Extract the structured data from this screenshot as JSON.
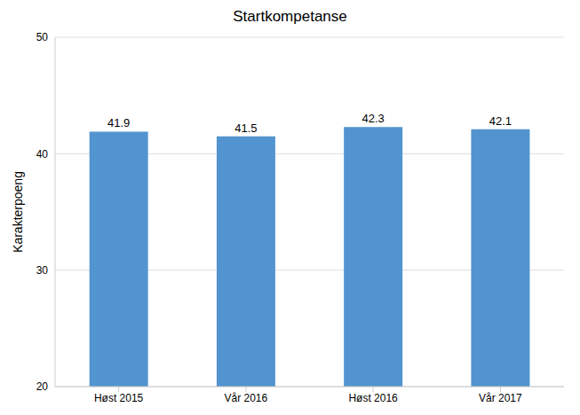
{
  "chart_data": {
    "type": "bar",
    "title": "Startkompetanse",
    "y_label": "Karakterpoeng",
    "categories": [
      "Høst 2015",
      "Vår 2016",
      "Høst 2016",
      "Vår 2017"
    ],
    "values": [
      41.9,
      41.5,
      42.3,
      42.1
    ],
    "color": "#5294cf",
    "ylim": [
      20,
      50
    ],
    "yticks": [
      20,
      30,
      40,
      50
    ],
    "grid": true,
    "data_labels": true
  }
}
